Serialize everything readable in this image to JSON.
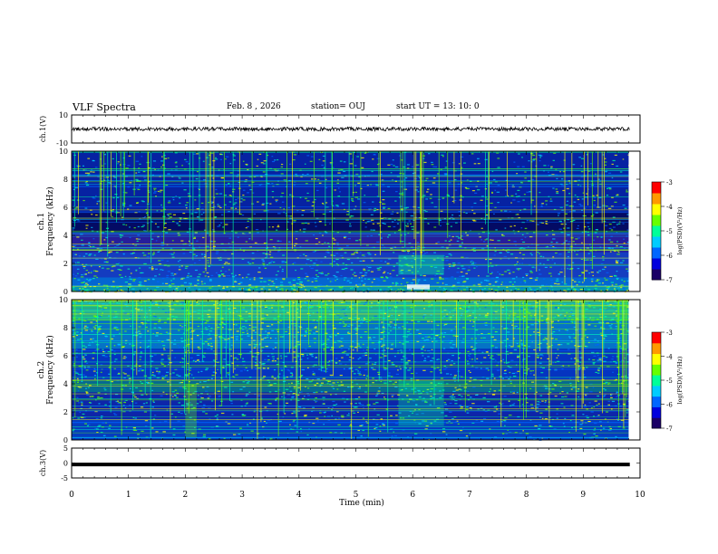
{
  "header": {
    "title": "VLF Spectra",
    "date": "Feb. 8 , 2026",
    "station": "station= OUJ",
    "start": "start UT = 13: 10: 0"
  },
  "colors": {
    "panel_bg": "#0a1a8c",
    "trace": "#000000"
  },
  "colorscale": [
    "#1a0066",
    "#0000dd",
    "#0066ff",
    "#00ccff",
    "#00ff99",
    "#66ff00",
    "#ffff00",
    "#ff9900",
    "#ff0000",
    "#ffffff"
  ],
  "chart_data": [
    {
      "type": "line",
      "panel": "ch1-waveform",
      "ylabel": "ch.1(V)",
      "ylim": [
        -10,
        10
      ],
      "ytick_labels": [
        "10",
        "-10"
      ],
      "description_level": 0,
      "xlim": [
        0,
        10
      ]
    },
    {
      "type": "heatmap",
      "panel": "ch1-spectrogram",
      "ylabel": "ch.1\nFrequency (kHz)",
      "ylabel_line1": "ch.1",
      "ylabel_line2": "Frequency (kHz)",
      "ylim": [
        0,
        10
      ],
      "ytick_labels": [
        "0",
        "2",
        "4",
        "6",
        "8",
        "10"
      ],
      "xlim": [
        0,
        10
      ],
      "data_end_min": 9.8,
      "colorbar": {
        "label": "log(PSD)(V²/Hz)",
        "range": [
          -7,
          -3
        ],
        "tick_labels": [
          "-7",
          "-6",
          "-5",
          "-4",
          "-3"
        ]
      }
    },
    {
      "type": "heatmap",
      "panel": "ch2-spectrogram",
      "ylabel": "ch.2\nFrequency (kHz)",
      "ylabel_line1": "ch.2",
      "ylabel_line2": "Frequency (kHz)",
      "ylim": [
        0,
        10
      ],
      "ytick_labels": [
        "0",
        "2",
        "4",
        "6",
        "8",
        "10"
      ],
      "xlim": [
        0,
        10
      ],
      "data_end_min": 9.8,
      "colorbar": {
        "label": "log(PSD)(V²/Hz)",
        "range": [
          -7,
          -3
        ],
        "tick_labels": [
          "-7",
          "-6",
          "-5",
          "-4",
          "-3"
        ]
      }
    },
    {
      "type": "line",
      "panel": "ch3-waveform",
      "ylabel": "ch.3(V)",
      "ylim": [
        -5,
        5
      ],
      "ytick_labels": [
        "5",
        "0",
        "-5"
      ],
      "level": -0.5,
      "xlim": [
        0,
        10
      ]
    }
  ],
  "xaxis": {
    "label": "Time (min)",
    "ticks": [
      0,
      1,
      2,
      3,
      4,
      5,
      6,
      7,
      8,
      9,
      10
    ],
    "tick_labels": [
      "0",
      "1",
      "2",
      "3",
      "4",
      "5",
      "6",
      "7",
      "8",
      "9",
      "10"
    ]
  }
}
